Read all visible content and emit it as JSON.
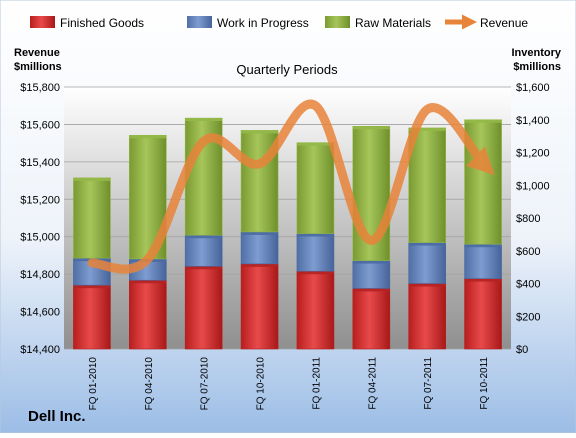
{
  "chart_data": {
    "type": "bar",
    "subtitle": "Quarterly Periods",
    "company": "Dell Inc.",
    "left_axis_label": [
      "Revenue",
      "$millions"
    ],
    "right_axis_label": [
      "Inventory",
      "$millions"
    ],
    "categories": [
      "FQ 01-2010",
      "FQ 04-2010",
      "FQ 07-2010",
      "FQ 10-2010",
      "FQ 01-2011",
      "FQ 04-2011",
      "FQ 07-2011",
      "FQ 10-2011"
    ],
    "left_ylim": [
      14400,
      15800
    ],
    "left_ticks": [
      "$14,400",
      "$14,600",
      "$14,800",
      "$15,000",
      "$15,200",
      "$15,400",
      "$15,600",
      "$15,800"
    ],
    "right_ylim": [
      0,
      1600
    ],
    "right_ticks": [
      "$0",
      "$200",
      "$400",
      "$600",
      "$800",
      "$1,000",
      "$1,200",
      "$1,400",
      "$1,600"
    ],
    "series": [
      {
        "name": "Finished Goods",
        "axis": "right",
        "color": "#d42a2a",
        "values": [
          390,
          420,
          505,
          520,
          475,
          370,
          400,
          430
        ]
      },
      {
        "name": "Work in Progress",
        "axis": "right",
        "color": "#5f7fb7",
        "values": [
          165,
          130,
          190,
          195,
          230,
          170,
          250,
          210
        ]
      },
      {
        "name": "Raw Materials",
        "axis": "right",
        "color": "#8db03c",
        "values": [
          490,
          755,
          715,
          620,
          555,
          820,
          700,
          760
        ]
      },
      {
        "name": "Revenue",
        "axis": "left",
        "color": "#e8833a",
        "values": [
          14860,
          14880,
          15510,
          15390,
          15700,
          14980,
          15680,
          15390
        ]
      }
    ],
    "legend_position": "top",
    "grid": "horizontal"
  }
}
